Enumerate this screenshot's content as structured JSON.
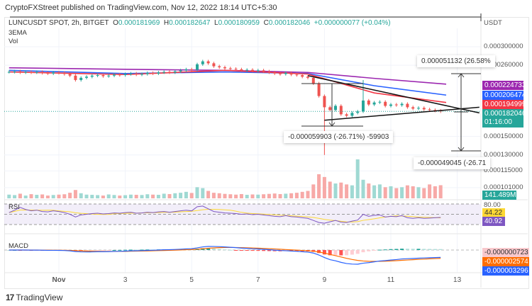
{
  "publisher_line": "CryptoFXStreet published on TradingView.com, Nov 12, 2022 18:14 UTC+5:30",
  "legend": {
    "symbol": "LUNCUSDT SPOT, 2h, BITGET",
    "open_label": "O",
    "open": "0.000181969",
    "high_label": "H",
    "high": "0.000182647",
    "low_label": "L",
    "low": "0.000180959",
    "close_label": "C",
    "close": "0.000182046",
    "change": "+0.000000077 (+0.04%)",
    "indicator_1": "3EMA",
    "indicator_2": "Vol"
  },
  "price_axis": {
    "unit": "USDT",
    "scale": "log",
    "ticks": [
      "0.000300000",
      "0.000260000",
      "0.000150000",
      "0.000130000",
      "0.000115000",
      "0.000101000"
    ],
    "tick_values": [
      0.0003,
      0.00026,
      0.00015,
      0.00013,
      0.000115,
      0.000101
    ]
  },
  "tags": {
    "ema_purple": "0.000224733",
    "ema_blue": "0.000206474",
    "ema_red": "0.000194999",
    "last_price": "0.000182046",
    "countdown": "01:16:00",
    "volume": "141.489M",
    "rsi_level": "80.00",
    "rsi_ma": "44.22",
    "rsi": "40.92",
    "macd_hist": "-0.000000723",
    "macd_signal": "-0.000002574",
    "macd": "-0.000003296"
  },
  "colors": {
    "up": "#26a69a",
    "down": "#ef5350",
    "ema_purple": "#9c27b0",
    "ema_blue": "#2962ff",
    "ema_red": "#f23645",
    "rsi": "#7e57c2",
    "rsi_ma": "#fdd835",
    "macd": "#2962ff",
    "signal": "#ff6d00"
  },
  "measurements": {
    "upper_right": "0.000051132 (26.58%",
    "lower_right": "-0.000049045 (-26.71",
    "left": "-0.000059903 (-26.71%) -59903"
  },
  "x_axis": {
    "labels": [
      "Nov",
      "3",
      "5",
      "7",
      "9",
      "11",
      "13"
    ],
    "dates": [
      "2022-11-01",
      "2022-11-03",
      "2022-11-05",
      "2022-11-07",
      "2022-11-09",
      "2022-11-11",
      "2022-11-13"
    ]
  },
  "panels": {
    "rsi_title": "RSI",
    "macd_title": "MACD"
  },
  "brand": "TradingView",
  "chart_data": {
    "type": "candlestick",
    "start": "2022-10-30T12:00",
    "step_hours": 4,
    "closes": [
      0.000247,
      0.000248,
      0.000246,
      0.000247,
      0.000246,
      0.000247,
      0.000245,
      0.000244,
      0.000246,
      0.000245,
      0.000243,
      0.00024,
      0.000232,
      0.000236,
      0.000238,
      0.00024,
      0.000241,
      0.000239,
      0.00024,
      0.000242,
      0.000241,
      0.000243,
      0.000244,
      0.000242,
      0.000243,
      0.000245,
      0.000244,
      0.000246,
      0.000247,
      0.000246,
      0.000248,
      0.00025,
      0.000252,
      0.000251,
      0.000262,
      0.000268,
      0.000264,
      0.000258,
      0.000256,
      0.000254,
      0.000253,
      0.000252,
      0.00025,
      0.000251,
      0.000249,
      0.00025,
      0.000248,
      0.000246,
      0.000244,
      0.000243,
      0.000245,
      0.000242,
      0.000241,
      0.000238,
      0.000236,
      0.000226,
      0.000205,
      0.000188,
      0.000184,
      0.00019,
      0.000178,
      0.000176,
      0.00018,
      0.000182,
      0.000198,
      0.000192,
      0.000195,
      0.000196,
      0.00019,
      0.000192,
      0.000191,
      0.000193,
      0.000188,
      0.000186,
      0.000187,
      0.000185,
      0.000184,
      0.000183,
      0.000182
    ],
    "volume_millions": [
      40,
      35,
      50,
      30,
      45,
      38,
      42,
      30,
      36,
      40,
      44,
      60,
      90,
      55,
      40,
      38,
      35,
      30,
      42,
      36,
      30,
      34,
      40,
      38,
      36,
      44,
      40,
      38,
      50,
      46,
      55,
      60,
      70,
      58,
      120,
      110,
      80,
      60,
      55,
      48,
      44,
      40,
      46,
      38,
      42,
      40,
      44,
      48,
      52,
      46,
      50,
      55,
      60,
      70,
      80,
      150,
      260,
      230,
      180,
      160,
      170,
      150,
      140,
      420,
      200,
      160,
      140,
      150,
      120,
      130,
      110,
      120,
      140,
      130,
      120,
      110,
      150,
      130,
      141.489
    ],
    "rsi": [
      55,
      62,
      70,
      64,
      60,
      62,
      58,
      57,
      60,
      58,
      55,
      50,
      42,
      48,
      50,
      52,
      53,
      51,
      52,
      54,
      53,
      55,
      56,
      53,
      54,
      56,
      55,
      57,
      58,
      56,
      58,
      60,
      62,
      60,
      72,
      74,
      66,
      58,
      56,
      54,
      53,
      52,
      50,
      51,
      49,
      50,
      48,
      46,
      44,
      43,
      46,
      43,
      42,
      40,
      38,
      32,
      26,
      24,
      28,
      32,
      27,
      26,
      30,
      33,
      50,
      44,
      47,
      48,
      42,
      44,
      43,
      46,
      40,
      38,
      40,
      38,
      39,
      40,
      40.92
    ],
    "ema_lines": {
      "dates": [
        "2022-10-30T12:00",
        "2022-11-03T00:00",
        "2022-11-06T00:00",
        "2022-11-08T12:00",
        "2022-11-10T12:00",
        "2022-11-12T16:00"
      ],
      "ema_purple": [
        0.000255,
        0.000252,
        0.00025,
        0.000246,
        0.000235,
        0.000224733
      ],
      "ema_blue": [
        0.00025,
        0.000244,
        0.000247,
        0.000244,
        0.000222,
        0.000206474
      ],
      "ema_red": [
        0.000247,
        0.000242,
        0.00025,
        0.000243,
        0.00021,
        0.000194999
      ]
    },
    "trendlines": [
      {
        "from": [
          "2022-11-08T12:00",
          0.00024
        ],
        "to": [
          "2022-11-13T16:00",
          0.00018
        ]
      },
      {
        "from": [
          "2022-11-09T00:00",
          0.00017
        ],
        "to": [
          "2022-11-13T16:00",
          0.000188
        ]
      }
    ],
    "rsi_levels": [
      80,
      20
    ],
    "last_price_line": 0.000182046
  }
}
